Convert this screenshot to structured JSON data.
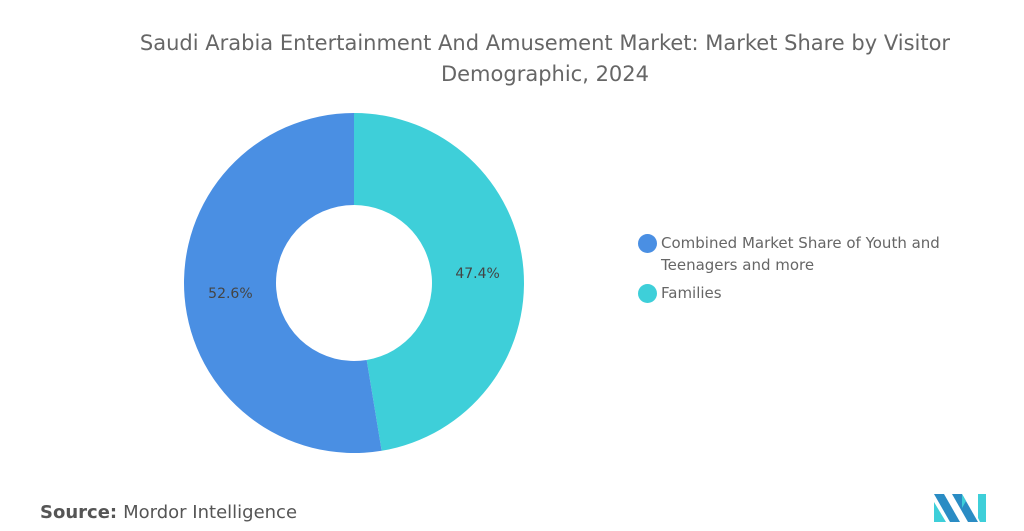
{
  "chart_data": {
    "type": "pie",
    "variant": "donut",
    "title": "Saudi Arabia Entertainment And Amusement Market: Market Share by Visitor Demographic, 2024",
    "slices": [
      {
        "label": "Families",
        "value": 47.4,
        "display": "47.4%",
        "color": "#3ecfd9"
      },
      {
        "label": "Combined Market Share of Youth and Teenagers and more",
        "value": 52.6,
        "display": "52.6%",
        "color": "#4a8fe3"
      }
    ],
    "legend_placement": "right",
    "legend_order": [
      1,
      0
    ]
  },
  "source_label": "Source:",
  "source_value": "Mordor Intelligence",
  "logo_icon": "mordor-intelligence-logo"
}
